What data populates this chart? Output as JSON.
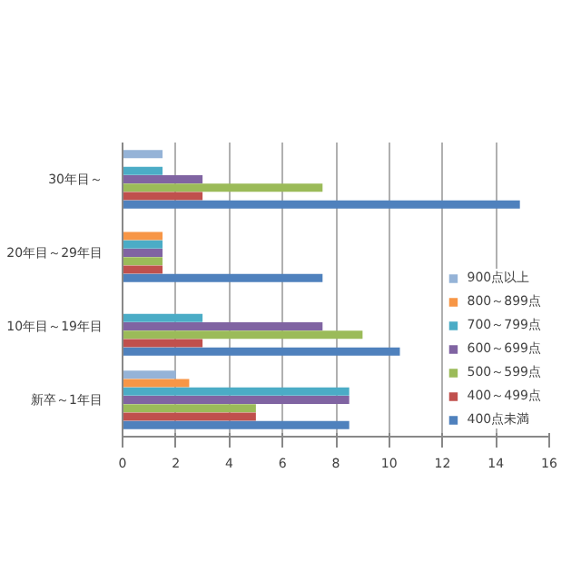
{
  "chart_data": {
    "type": "bar",
    "orientation": "horizontal",
    "categories": [
      "30年目～",
      "20年目～29年目",
      "10年目～19年目",
      "新卒～1年目"
    ],
    "series": [
      {
        "name": "900点以上",
        "color": "#95b3d7",
        "values": [
          1.5,
          null,
          null,
          2
        ]
      },
      {
        "name": "800～899点",
        "color": "#f79646",
        "values": [
          null,
          1.5,
          null,
          2.5
        ]
      },
      {
        "name": "700～799点",
        "color": "#4bacc6",
        "values": [
          1.5,
          1.5,
          3,
          8.5
        ]
      },
      {
        "name": "600～699点",
        "color": "#8064a2",
        "values": [
          3,
          1.5,
          7.5,
          8.5
        ]
      },
      {
        "name": "500～599点",
        "color": "#9bbb59",
        "values": [
          7.5,
          1.5,
          9,
          5
        ]
      },
      {
        "name": "400～499点",
        "color": "#c0504d",
        "values": [
          3,
          1.5,
          3,
          5
        ]
      },
      {
        "name": "400点未満",
        "color": "#4f81bd",
        "values": [
          14.9,
          7.5,
          10.4,
          8.5
        ]
      }
    ],
    "xlim": [
      0,
      16
    ],
    "xticks": [
      0,
      2,
      4,
      6,
      8,
      10,
      12,
      14,
      16
    ],
    "grid": "x",
    "legend": "bottom right"
  }
}
